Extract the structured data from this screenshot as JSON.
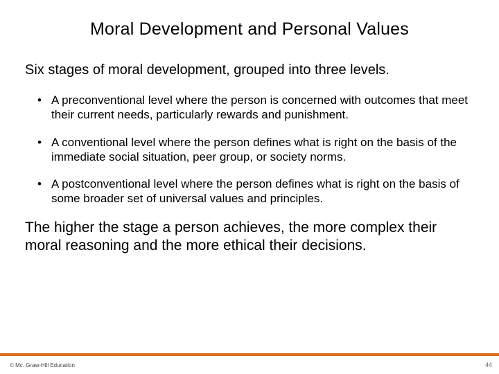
{
  "title": "Moral Development and Personal Values",
  "intro": "Six stages of moral development, grouped into three levels.",
  "bullets": [
    "A preconventional level where the person is concerned with outcomes that meet their current needs, particularly rewards and punishment.",
    "A conventional level where the person defines what is right on the basis  of the immediate social situation, peer group, or society norms.",
    "A postconventional level where the person defines what is right on the basis of some broader set of universal values and principles."
  ],
  "closing": "The higher the stage a person achieves, the more complex their moral reasoning and the more ethical their decisions.",
  "footer": {
    "bar_color": "#d96f1e",
    "copyright": "© Mc. Graw-Hill Education",
    "page_number": "44"
  },
  "typography": {
    "title_fontsize": 25,
    "intro_fontsize": 20,
    "bullet_fontsize": 17,
    "closing_fontsize": 21,
    "copyright_fontsize": 8,
    "pagenum_fontsize": 9,
    "text_color": "#000000",
    "background_color": "#ffffff"
  }
}
